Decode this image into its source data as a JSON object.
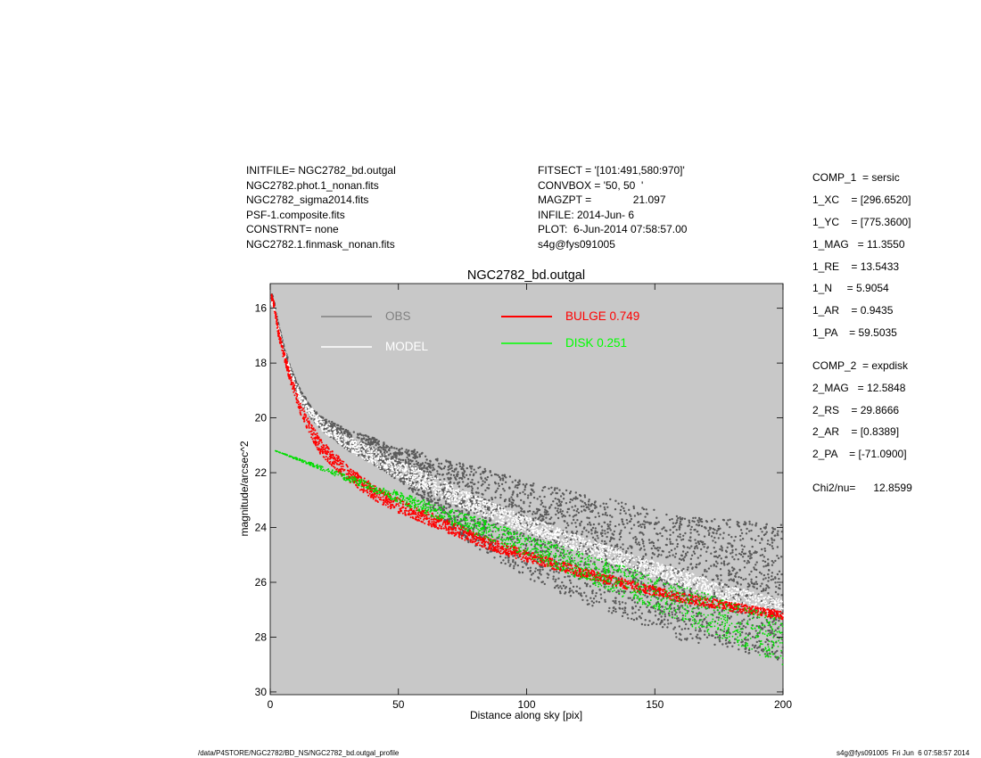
{
  "header_left": [
    "INITFILE= NGC2782_bd.outgal",
    "NGC2782.phot.1_nonan.fits",
    "NGC2782_sigma2014.fits",
    "PSF-1.composite.fits",
    "CONSTRNT= none",
    "NGC2782.1.finmask_nonan.fits"
  ],
  "header_mid": [
    "FITSECT = '[101:491,580:970]'",
    "CONVBOX = '50, 50  '",
    "MAGZPT =              21.097",
    "INFILE: 2014-Jun- 6",
    "PLOT:  6-Jun-2014 07:58:57.00",
    "s4g@fys091005"
  ],
  "components": {
    "comp1": [
      "COMP_1  = sersic",
      "1_XC    = [296.6520]",
      "1_YC    = [775.3600]",
      "1_MAG   = 11.3550",
      "1_RE    = 13.5433",
      "1_N     = 5.9054",
      "1_AR    = 0.9435",
      "1_PA    = 59.5035"
    ],
    "comp2": [
      "COMP_2  = expdisk",
      "2_MAG   = 12.5848",
      "2_RS    = 29.8666",
      "2_AR    = [0.8389]",
      "2_PA    = [-71.0900]"
    ],
    "chi2": "Chi2/nu=      12.8599"
  },
  "footer": {
    "left": "/data/P4STORE/NGC2782/BD_NS/NGC2782_bd.outgal_profile",
    "right": "s4g@fys091005  Fri Jun  6 07:58:57 2014"
  },
  "chart_data": {
    "type": "scatter",
    "title": "NGC2782_bd.outgal",
    "xlabel": "Distance along sky [pix]",
    "ylabel": "magnitude/arcsec^2",
    "xlim": [
      0,
      200
    ],
    "ylim": [
      30.1,
      15.1
    ],
    "y_inverted": true,
    "xticks": [
      0,
      50,
      100,
      150,
      200
    ],
    "yticks": [
      16,
      18,
      20,
      22,
      24,
      26,
      28,
      30
    ],
    "background": "#c8c8c8",
    "legend": [
      {
        "label": "OBS",
        "color": "#808080"
      },
      {
        "label": "MODEL",
        "color": "#ffffff"
      },
      {
        "label": "BULGE  0.749",
        "color": "#ff0000"
      },
      {
        "label": "DISK  0.251",
        "color": "#00ff00"
      }
    ],
    "series": [
      {
        "name": "OBS",
        "color": "#5a5a5a",
        "style": "scatter-band",
        "points": [
          [
            1,
            15.6
          ],
          [
            3,
            16.6
          ],
          [
            5,
            17.4
          ],
          [
            8,
            18.3
          ],
          [
            12,
            19.2
          ],
          [
            16,
            19.8
          ],
          [
            20,
            20.2
          ],
          [
            30,
            20.8
          ],
          [
            40,
            21.2
          ],
          [
            50,
            21.7
          ],
          [
            60,
            22.1
          ],
          [
            70,
            22.6
          ],
          [
            80,
            23.0
          ],
          [
            90,
            23.4
          ],
          [
            100,
            23.8
          ],
          [
            120,
            24.4
          ],
          [
            140,
            24.9
          ],
          [
            160,
            25.5
          ],
          [
            180,
            25.7
          ],
          [
            200,
            26.0
          ]
        ],
        "spread": [
          [
            0,
            0.1
          ],
          [
            20,
            0.25
          ],
          [
            50,
            0.6
          ],
          [
            80,
            1.5
          ],
          [
            120,
            2.0
          ],
          [
            200,
            2.5
          ]
        ]
      },
      {
        "name": "MODEL",
        "color": "#ffffff",
        "style": "band",
        "points": [
          [
            1,
            15.8
          ],
          [
            3,
            16.7
          ],
          [
            5,
            17.5
          ],
          [
            8,
            18.4
          ],
          [
            12,
            19.3
          ],
          [
            16,
            19.8
          ],
          [
            20,
            20.25
          ],
          [
            30,
            20.9
          ],
          [
            40,
            21.4
          ],
          [
            50,
            21.9
          ],
          [
            60,
            22.3
          ],
          [
            70,
            22.75
          ],
          [
            80,
            23.15
          ],
          [
            90,
            23.55
          ],
          [
            100,
            23.9
          ],
          [
            120,
            24.6
          ],
          [
            140,
            25.25
          ],
          [
            160,
            25.85
          ],
          [
            180,
            26.45
          ],
          [
            200,
            26.95
          ]
        ],
        "spread": [
          [
            0,
            0.1
          ],
          [
            50,
            0.35
          ],
          [
            100,
            0.3
          ],
          [
            200,
            0.3
          ]
        ]
      },
      {
        "name": "BULGE",
        "color": "#ff0000",
        "style": "band",
        "points": [
          [
            1,
            15.6
          ],
          [
            3,
            16.8
          ],
          [
            5,
            17.6
          ],
          [
            8,
            18.6
          ],
          [
            12,
            19.7
          ],
          [
            16,
            20.5
          ],
          [
            20,
            21.1
          ],
          [
            30,
            22.0
          ],
          [
            40,
            22.7
          ],
          [
            50,
            23.2
          ],
          [
            60,
            23.6
          ],
          [
            70,
            24.0
          ],
          [
            80,
            24.4
          ],
          [
            90,
            24.75
          ],
          [
            100,
            25.05
          ],
          [
            120,
            25.6
          ],
          [
            140,
            26.1
          ],
          [
            160,
            26.55
          ],
          [
            180,
            26.9
          ],
          [
            200,
            27.2
          ]
        ],
        "spread": [
          [
            0,
            0.12
          ],
          [
            20,
            0.3
          ],
          [
            100,
            0.2
          ],
          [
            200,
            0.15
          ]
        ]
      },
      {
        "name": "DISK",
        "color": "#00dd00",
        "style": "fan",
        "x0": 2,
        "y0": 21.2,
        "slope_low": 0.0395,
        "slope_high": 0.031
      }
    ]
  }
}
